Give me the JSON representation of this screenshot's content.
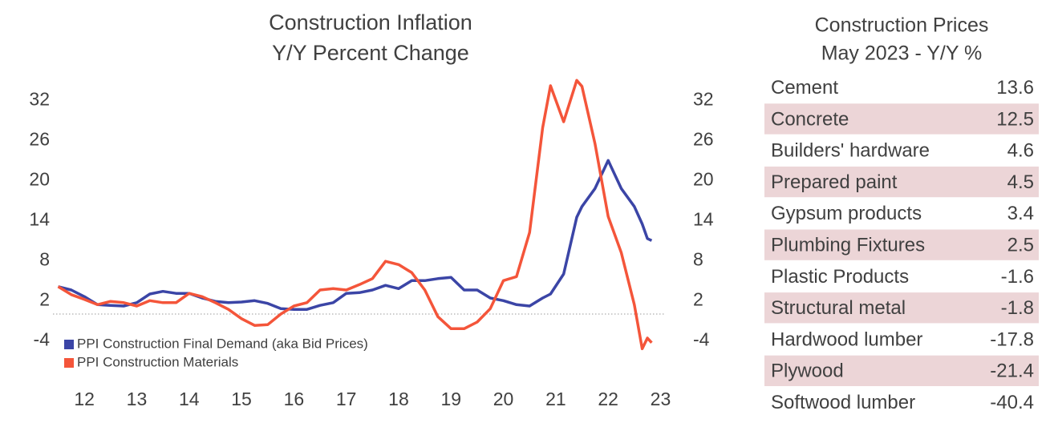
{
  "chart_data": {
    "type": "line",
    "title": "Construction Inflation",
    "subtitle": "Y/Y Percent Change",
    "x": [
      12.0,
      12.25,
      12.5,
      12.75,
      13.0,
      13.25,
      13.5,
      13.75,
      14.0,
      14.25,
      14.5,
      14.75,
      15.0,
      15.25,
      15.5,
      15.75,
      16.0,
      16.25,
      16.5,
      16.75,
      17.0,
      17.25,
      17.5,
      17.75,
      18.0,
      18.25,
      18.5,
      18.75,
      19.0,
      19.25,
      19.5,
      19.75,
      20.0,
      20.25,
      20.5,
      20.75,
      21.0,
      21.25,
      21.4,
      21.65,
      21.9,
      22.0,
      22.25,
      22.5,
      22.75,
      23.0,
      23.15,
      23.25,
      23.33
    ],
    "series": [
      {
        "name": "PPI Construction Final Demand (aka Bid Prices)",
        "color": "#3b45a6",
        "values": [
          4.1,
          3.6,
          2.6,
          1.4,
          1.3,
          1.2,
          1.7,
          3.0,
          3.4,
          3.1,
          3.1,
          2.4,
          1.9,
          1.7,
          1.8,
          2.0,
          1.6,
          0.8,
          0.7,
          0.7,
          1.3,
          1.7,
          3.1,
          3.2,
          3.6,
          4.3,
          3.8,
          5.0,
          5.0,
          5.3,
          5.5,
          3.6,
          3.6,
          2.4,
          2.0,
          1.4,
          1.2,
          2.4,
          3.0,
          6.0,
          14.5,
          16.1,
          18.8,
          23.0,
          18.8,
          16.1,
          13.5,
          11.3,
          11.0
        ]
      },
      {
        "name": "PPI Construction Materials",
        "color": "#f4553a",
        "values": [
          4.1,
          2.9,
          2.2,
          1.4,
          1.9,
          1.7,
          1.2,
          2.0,
          1.7,
          1.7,
          3.1,
          2.6,
          1.7,
          0.7,
          -0.7,
          -1.7,
          -1.6,
          0.0,
          1.2,
          1.7,
          3.6,
          3.8,
          3.6,
          4.4,
          5.3,
          7.9,
          7.4,
          6.2,
          3.6,
          -0.4,
          -2.2,
          -2.2,
          -1.2,
          0.8,
          5.0,
          5.6,
          12.2,
          27.9,
          34.2,
          28.8,
          35.0,
          34.1,
          25.5,
          14.6,
          9.2,
          1.4,
          -5.2,
          -3.6,
          -4.3
        ]
      }
    ],
    "xlim": [
      11.9,
      23.6
    ],
    "xticks": [
      {
        "value": 12.5,
        "label": "12"
      },
      {
        "value": 13.5,
        "label": "13"
      },
      {
        "value": 14.5,
        "label": "14"
      },
      {
        "value": 15.5,
        "label": "15"
      },
      {
        "value": 16.5,
        "label": "16"
      },
      {
        "value": 17.5,
        "label": "17"
      },
      {
        "value": 18.5,
        "label": "18"
      },
      {
        "value": 19.5,
        "label": "19"
      },
      {
        "value": 20.5,
        "label": "20"
      },
      {
        "value": 21.5,
        "label": "21"
      },
      {
        "value": 22.5,
        "label": "22"
      },
      {
        "value": 23.5,
        "label": "23"
      }
    ],
    "ylim": [
      -6,
      36
    ],
    "yticks": [
      -4,
      2,
      8,
      14,
      20,
      26,
      32
    ],
    "y2lim": [
      -6,
      36
    ],
    "y2ticks": [
      -4,
      2,
      8,
      14,
      20,
      26,
      32
    ],
    "reference_line": 0,
    "grid": false,
    "legend": "lower left"
  },
  "table": {
    "title": "Construction Prices",
    "subtitle": "May 2023 - Y/Y %",
    "rows": [
      [
        "Cement",
        13.6
      ],
      [
        "Concrete",
        12.5
      ],
      [
        "Builders' hardware",
        4.6
      ],
      [
        "Prepared paint",
        4.5
      ],
      [
        "Gypsum products",
        3.4
      ],
      [
        "Plumbing Fixtures",
        2.5
      ],
      [
        "Plastic Products",
        -1.6
      ],
      [
        "Structural metal",
        -1.8
      ],
      [
        "Hardwood lumber",
        -17.8
      ],
      [
        "Plywood",
        -21.4
      ],
      [
        "Softwood lumber",
        -40.4
      ]
    ]
  }
}
